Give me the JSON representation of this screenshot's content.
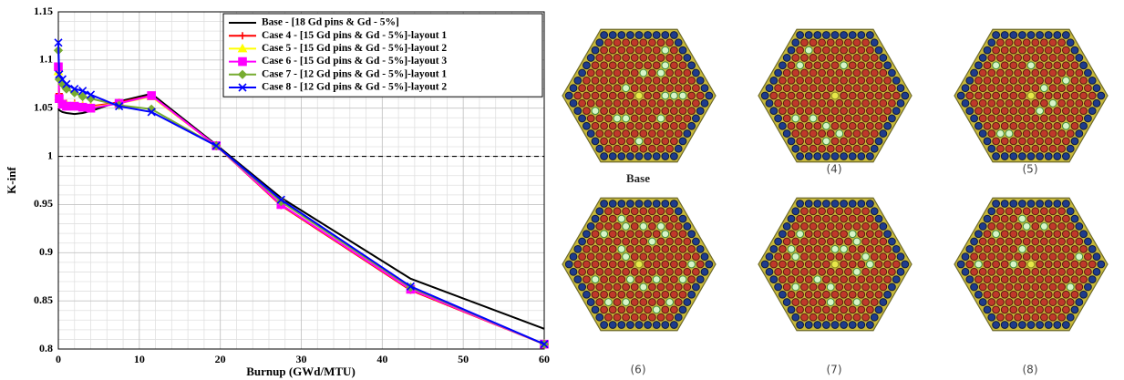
{
  "chart_data": {
    "type": "line",
    "xlabel": "Burnup (GWd/MTU)",
    "ylabel": "K-inf",
    "x": [
      0,
      0.1,
      0.5,
      1,
      2,
      3,
      4,
      7.5,
      11.5,
      19.5,
      27.5,
      43.5,
      60
    ],
    "xlim": [
      0,
      60
    ],
    "xticks": [
      0,
      10,
      20,
      30,
      40,
      50,
      60
    ],
    "ylim": [
      0.8,
      1.15
    ],
    "yticks": [
      0.8,
      0.85,
      0.9,
      0.95,
      1,
      1.05,
      1.1,
      1.15
    ],
    "grid": true,
    "minor_grid": 5,
    "reference_line": 1,
    "legend": "upper right",
    "series": [
      {
        "name": "Base    - [18 Gd pins & Gd - 5%]",
        "color": "#000000",
        "marker": "none",
        "values": [
          1.05,
          1.048,
          1.046,
          1.045,
          1.044,
          1.045,
          1.047,
          1.057,
          1.065,
          1.012,
          0.957,
          0.873,
          0.821
        ]
      },
      {
        "name": "Case 4 - [15 Gd pins & Gd - 5%]-layout 1",
        "color": "#ff0000",
        "marker": "plus",
        "values": [
          1.09,
          1.065,
          1.058,
          1.055,
          1.055,
          1.053,
          1.052,
          1.056,
          1.063,
          1.011,
          0.949,
          0.861,
          0.805
        ]
      },
      {
        "name": "Case 5 - [15 Gd pins & Gd - 5%]-layout 2",
        "color": "#ffff00",
        "marker": "triangle",
        "values": [
          1.088,
          1.062,
          1.056,
          1.054,
          1.053,
          1.052,
          1.051,
          1.055,
          1.062,
          1.011,
          0.95,
          0.862,
          0.805
        ]
      },
      {
        "name": "Case 6 - [15 Gd pins & Gd - 5%]-layout 3",
        "color": "#ff00ff",
        "marker": "square",
        "values": [
          1.093,
          1.06,
          1.054,
          1.052,
          1.052,
          1.051,
          1.05,
          1.055,
          1.063,
          1.011,
          0.95,
          0.862,
          0.805
        ]
      },
      {
        "name": "Case 7 - [12 Gd pins & Gd - 5%]-layout 1",
        "color": "#77ac30",
        "marker": "diamond",
        "values": [
          1.11,
          1.08,
          1.075,
          1.07,
          1.066,
          1.062,
          1.06,
          1.053,
          1.049,
          1.011,
          0.953,
          0.864,
          0.805
        ]
      },
      {
        "name": "Case 8 - [12 Gd pins & Gd - 5%]-layout 2",
        "color": "#0000ff",
        "marker": "cross",
        "values": [
          1.118,
          1.085,
          1.08,
          1.075,
          1.07,
          1.068,
          1.064,
          1.052,
          1.046,
          1.011,
          0.955,
          0.865,
          0.805
        ]
      }
    ]
  },
  "assemblies": [
    "Base",
    "(4)",
    "(5)",
    "(6)",
    "(7)",
    "(8)"
  ]
}
